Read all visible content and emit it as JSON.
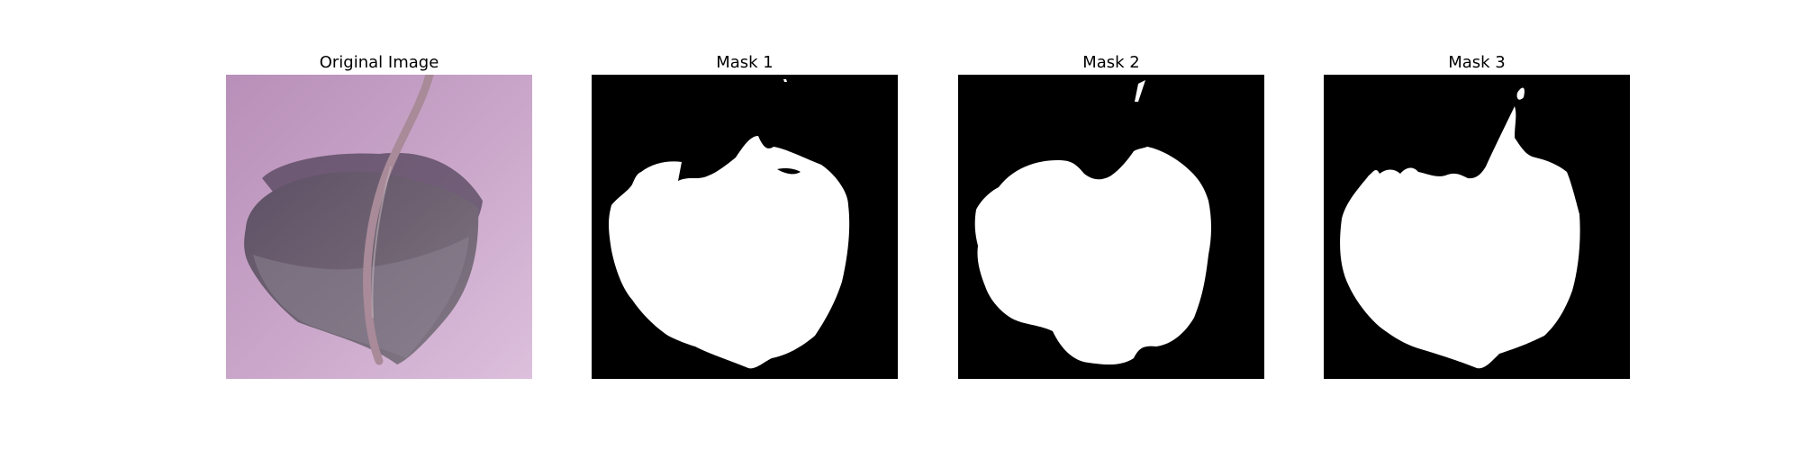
{
  "figure": {
    "panels": [
      {
        "title": "Original Image"
      },
      {
        "title": "Mask 1"
      },
      {
        "title": "Mask 2"
      },
      {
        "title": "Mask 3"
      }
    ],
    "colors": {
      "mask_background": "#000000",
      "mask_foreground": "#ffffff",
      "photo_background": "#c8a0c8",
      "leaf": "#6a5a6e"
    }
  }
}
